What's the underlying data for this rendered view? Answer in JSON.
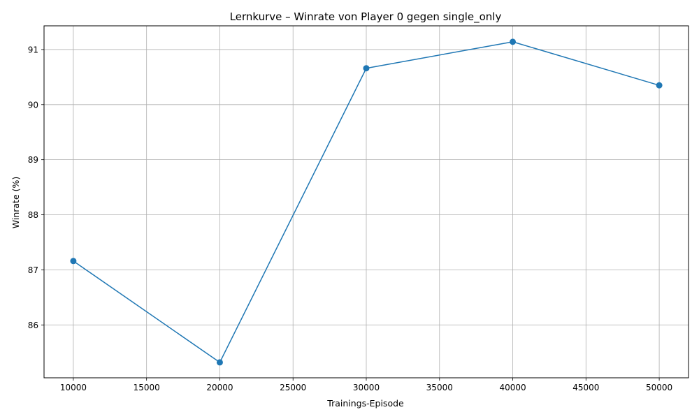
{
  "chart_data": {
    "type": "line",
    "title": "Lernkurve – Winrate von Player 0 gegen single_only",
    "xlabel": "Trainings-Episode",
    "ylabel": "Winrate (%)",
    "x": [
      10000,
      20000,
      30000,
      40000,
      50000
    ],
    "series": [
      {
        "values": [
          87.16,
          85.32,
          90.66,
          91.14,
          90.35
        ],
        "color": "#1f77b4",
        "marker": "circle"
      }
    ],
    "xlim": [
      8000,
      52000
    ],
    "ylim": [
      85.04,
      91.43
    ],
    "xticks": [
      10000,
      15000,
      20000,
      25000,
      30000,
      35000,
      40000,
      45000,
      50000
    ],
    "yticks": [
      86,
      87,
      88,
      89,
      90,
      91
    ],
    "grid": true,
    "grid_color": "#b0b0b0"
  }
}
